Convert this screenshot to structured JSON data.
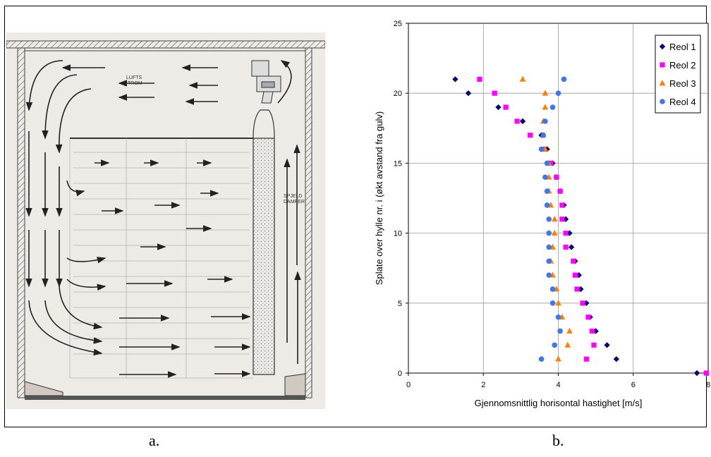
{
  "captions": {
    "a": "a.",
    "b": "b."
  },
  "diagram": {
    "labels": {
      "airflow": [
        "LUFTS",
        "TROM"
      ],
      "damper": [
        "SPJELD",
        "DAMPER"
      ]
    }
  },
  "chart_data": {
    "type": "scatter",
    "title": "",
    "xlabel": "Gjennomsnittlig horisontal hastighet [m/s]",
    "ylabel": "Splate over hylle nr.  i (økt avstand fra gulv)",
    "xlim": [
      0,
      8
    ],
    "ylim": [
      0,
      25
    ],
    "xticks": [
      0,
      2,
      4,
      6,
      8
    ],
    "yticks": [
      0,
      5,
      10,
      15,
      20,
      25
    ],
    "grid": "vertical-and-horizontal gridlines",
    "legend_position": "top-right",
    "series": [
      {
        "name": "Reol 1",
        "marker": "diamond",
        "color": "#0a0a6e",
        "points": [
          [
            7.7,
            0
          ],
          [
            5.55,
            1
          ],
          [
            5.3,
            2
          ],
          [
            5.0,
            3
          ],
          [
            4.85,
            4
          ],
          [
            4.75,
            5
          ],
          [
            4.6,
            6
          ],
          [
            4.55,
            7
          ],
          [
            4.45,
            8
          ],
          [
            4.35,
            9
          ],
          [
            4.3,
            10
          ],
          [
            4.2,
            11
          ],
          [
            4.15,
            12
          ],
          [
            4.05,
            13
          ],
          [
            3.95,
            14
          ],
          [
            3.85,
            15
          ],
          [
            3.7,
            16
          ],
          [
            3.55,
            17
          ],
          [
            3.05,
            18
          ],
          [
            2.4,
            19
          ],
          [
            1.6,
            20
          ],
          [
            1.25,
            21
          ]
        ]
      },
      {
        "name": "Reol 2",
        "marker": "square",
        "color": "#ff00ff",
        "points": [
          [
            7.95,
            0
          ],
          [
            4.75,
            1
          ],
          [
            4.95,
            2
          ],
          [
            4.9,
            3
          ],
          [
            4.8,
            4
          ],
          [
            4.65,
            5
          ],
          [
            4.5,
            6
          ],
          [
            4.45,
            7
          ],
          [
            4.4,
            8
          ],
          [
            4.2,
            9
          ],
          [
            4.2,
            10
          ],
          [
            4.1,
            11
          ],
          [
            4.1,
            12
          ],
          [
            4.05,
            13
          ],
          [
            3.95,
            14
          ],
          [
            3.8,
            15
          ],
          [
            3.6,
            16
          ],
          [
            3.25,
            17
          ],
          [
            2.9,
            18
          ],
          [
            2.6,
            19
          ],
          [
            2.3,
            20
          ],
          [
            1.9,
            21
          ]
        ]
      },
      {
        "name": "Reol 3",
        "marker": "triangle",
        "color": "#ff7f00",
        "points": [
          [
            4.0,
            1
          ],
          [
            4.25,
            2
          ],
          [
            4.3,
            3
          ],
          [
            4.1,
            4
          ],
          [
            4.0,
            5
          ],
          [
            3.95,
            6
          ],
          [
            3.85,
            7
          ],
          [
            3.8,
            8
          ],
          [
            3.85,
            9
          ],
          [
            3.9,
            10
          ],
          [
            3.9,
            11
          ],
          [
            3.8,
            12
          ],
          [
            3.75,
            13
          ],
          [
            3.75,
            14
          ],
          [
            3.75,
            15
          ],
          [
            3.65,
            16
          ],
          [
            3.6,
            17
          ],
          [
            3.6,
            18
          ],
          [
            3.65,
            19
          ],
          [
            3.65,
            20
          ],
          [
            3.05,
            21
          ]
        ]
      },
      {
        "name": "Reol 4",
        "marker": "circle",
        "color": "#3c78e6",
        "points": [
          [
            3.55,
            1
          ],
          [
            3.9,
            2
          ],
          [
            4.05,
            3
          ],
          [
            4.0,
            4
          ],
          [
            3.85,
            5
          ],
          [
            3.85,
            6
          ],
          [
            3.75,
            7
          ],
          [
            3.75,
            8
          ],
          [
            3.75,
            9
          ],
          [
            3.75,
            10
          ],
          [
            3.75,
            11
          ],
          [
            3.7,
            12
          ],
          [
            3.7,
            13
          ],
          [
            3.65,
            14
          ],
          [
            3.7,
            15
          ],
          [
            3.55,
            16
          ],
          [
            3.6,
            17
          ],
          [
            3.65,
            18
          ],
          [
            3.85,
            19
          ],
          [
            4.0,
            20
          ],
          [
            4.15,
            21
          ]
        ]
      }
    ]
  }
}
